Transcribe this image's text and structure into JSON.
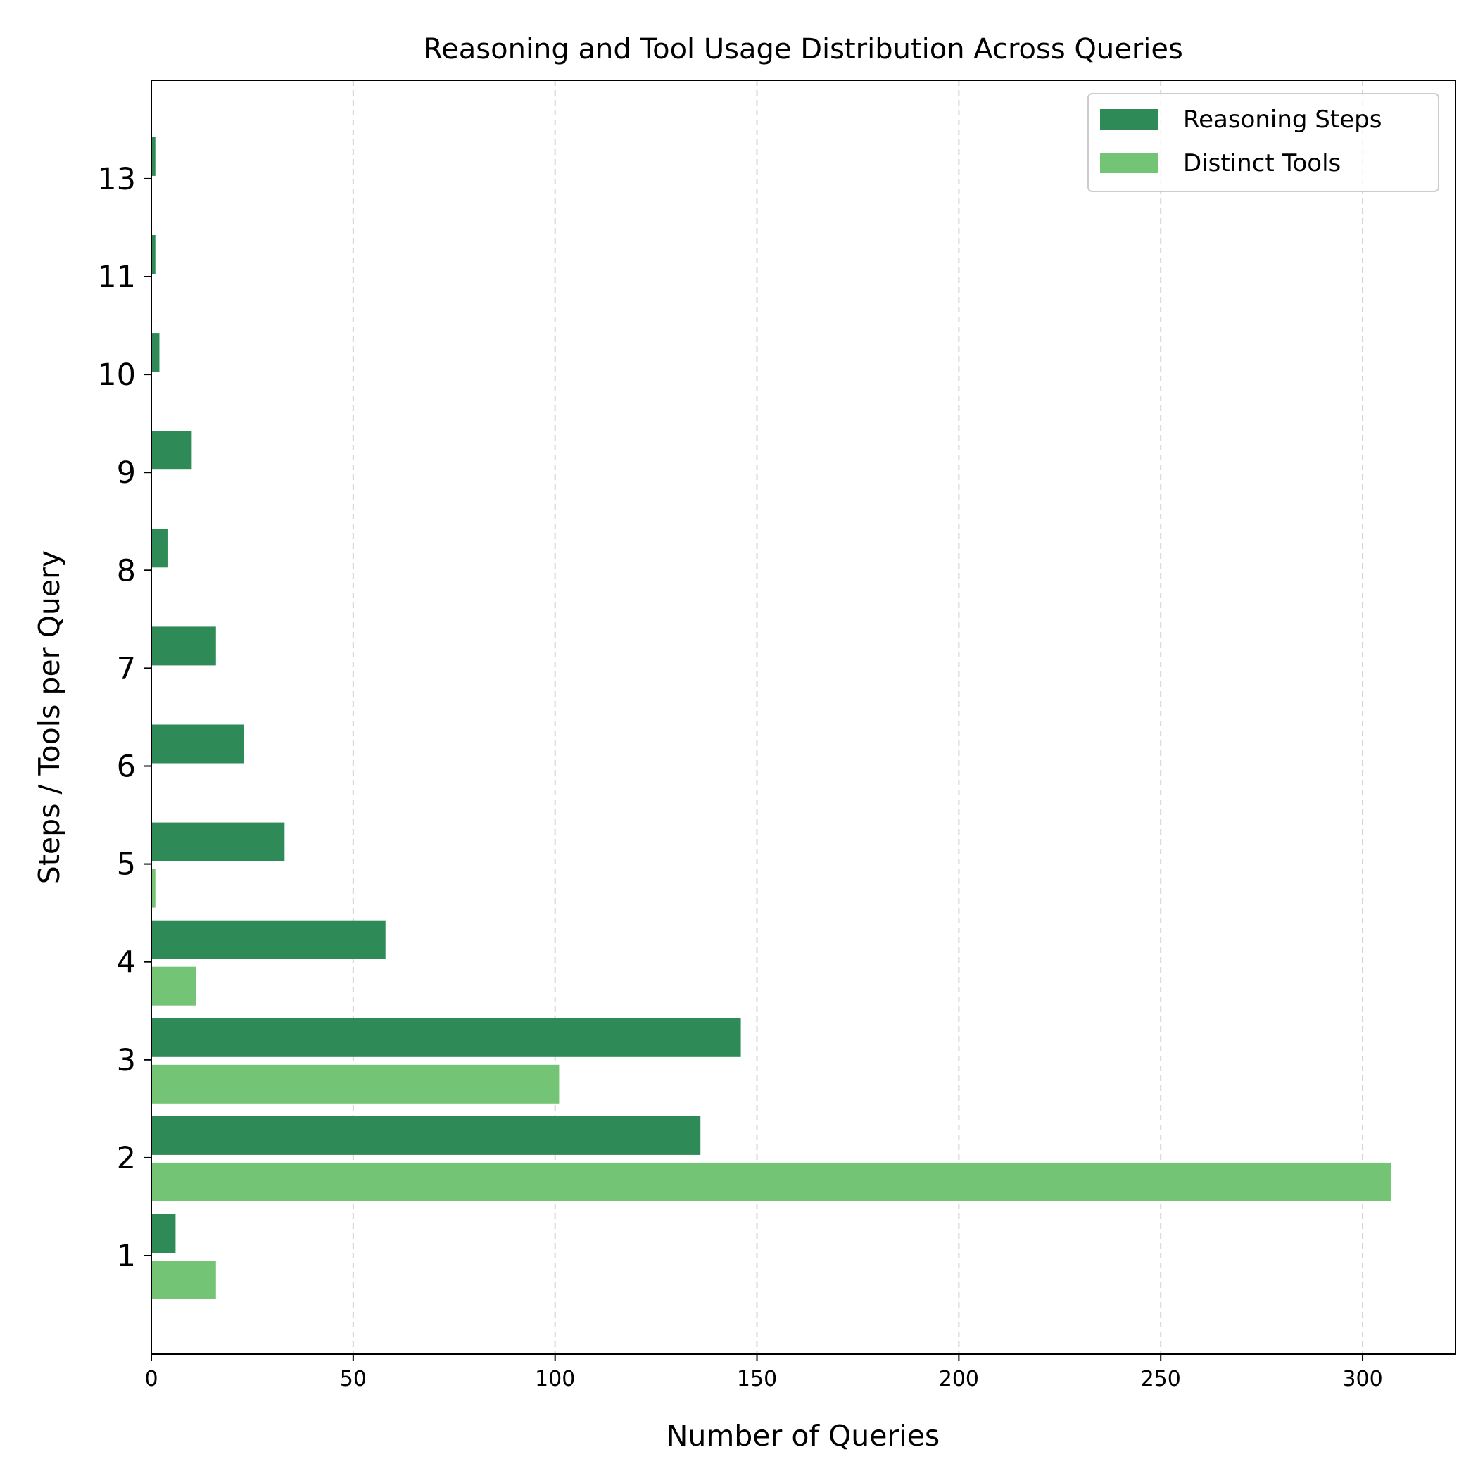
{
  "chart_data": {
    "type": "bar",
    "orientation": "horizontal",
    "title": "Reasoning and Tool Usage Distribution Across Queries",
    "xlabel": "Number of Queries",
    "ylabel": "Steps / Tools per Query",
    "xlim": [
      0,
      323
    ],
    "x_ticks": [
      "0",
      "50",
      "100",
      "150",
      "200",
      "250",
      "300"
    ],
    "y_ticks": [
      "1",
      "2",
      "3",
      "4",
      "5",
      "6",
      "7",
      "8",
      "9",
      "10",
      "11",
      "13"
    ],
    "grid": "vertical dashed",
    "legend_position": "upper right",
    "series": [
      {
        "name": "Reasoning Steps",
        "color": "#2e8b57",
        "values": [
          6,
          136,
          146,
          58,
          33,
          23,
          16,
          4,
          10,
          2,
          1,
          1
        ]
      },
      {
        "name": "Distinct Tools",
        "color": "#74c476",
        "values": [
          16,
          307,
          101,
          11,
          1,
          0,
          0,
          0,
          0,
          0,
          0,
          0
        ]
      }
    ]
  }
}
